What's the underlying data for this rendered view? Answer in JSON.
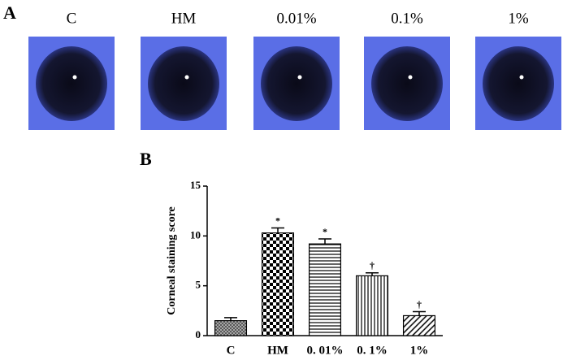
{
  "panel_a": {
    "label": "A",
    "images": [
      "C",
      "HM",
      "0.01%",
      "0.1%",
      "1%"
    ]
  },
  "chart_data": {
    "type": "bar",
    "panel_label": "B",
    "y_label": "Corneal staining score",
    "categories": [
      "C",
      "HM",
      "0. 01%",
      "0. 1%",
      "1%"
    ],
    "values": [
      1.5,
      10.3,
      9.2,
      6.0,
      2.0
    ],
    "errors": [
      0.3,
      0.5,
      0.5,
      0.3,
      0.4
    ],
    "annotations": [
      null,
      "*",
      "*",
      "†",
      "†"
    ],
    "patterns": [
      "crosshatch",
      "checker",
      "horizontal",
      "vertical",
      "diagonal"
    ],
    "color": "#000000",
    "ylim": [
      0,
      15
    ],
    "yticks": [
      0,
      5,
      10,
      15
    ],
    "grid": false
  }
}
